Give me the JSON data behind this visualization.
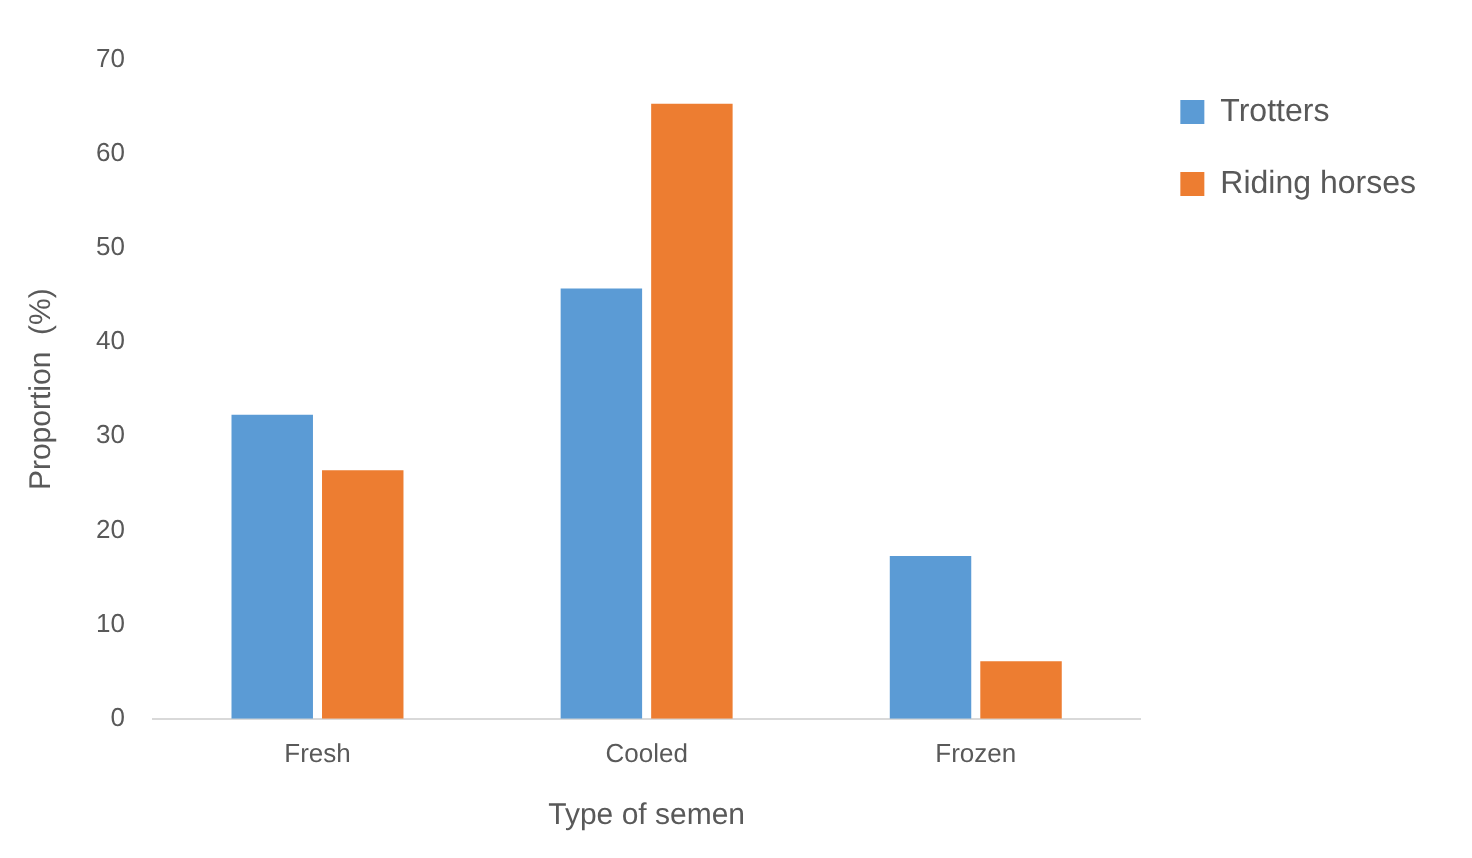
{
  "chart_data": {
    "type": "bar",
    "xlabel": "Type of semen",
    "ylabel": "Proportion  (%)",
    "categories": [
      "Fresh",
      "Cooled",
      "Frozen"
    ],
    "series": [
      {
        "name": "Trotters",
        "color": "#5b9bd5",
        "values": [
          32.3,
          45.7,
          17.3
        ]
      },
      {
        "name": "Riding horses",
        "color": "#ed7d31",
        "values": [
          26.4,
          65.3,
          6.1
        ]
      }
    ],
    "ylim": [
      0,
      70
    ],
    "yticks": [
      0,
      10,
      20,
      30,
      40,
      50,
      60,
      70
    ],
    "grid": false,
    "legend": "top right"
  }
}
